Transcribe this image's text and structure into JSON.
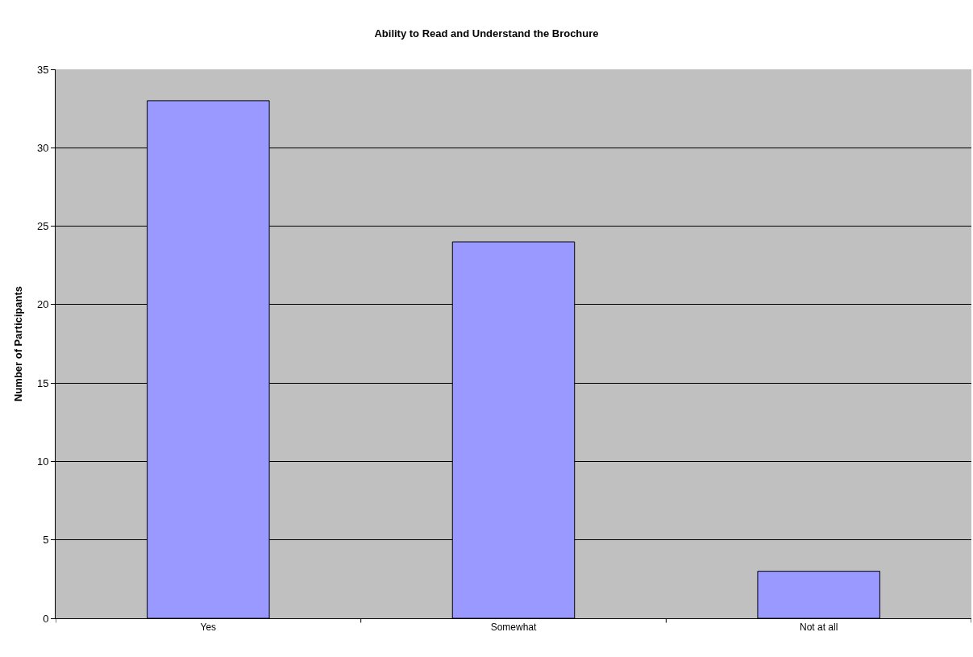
{
  "chart_data": {
    "type": "bar",
    "title": "Ability to Read and Understand the Brochure",
    "ylabel": "Number of Participants",
    "categories": [
      "Yes",
      "Somewhat",
      "Not at all"
    ],
    "values": [
      33,
      24,
      3
    ],
    "color": "#9999ff",
    "ylim": [
      0,
      35
    ],
    "yticks": [
      0,
      5,
      10,
      15,
      20,
      25,
      30,
      35
    ],
    "grid": "y"
  }
}
